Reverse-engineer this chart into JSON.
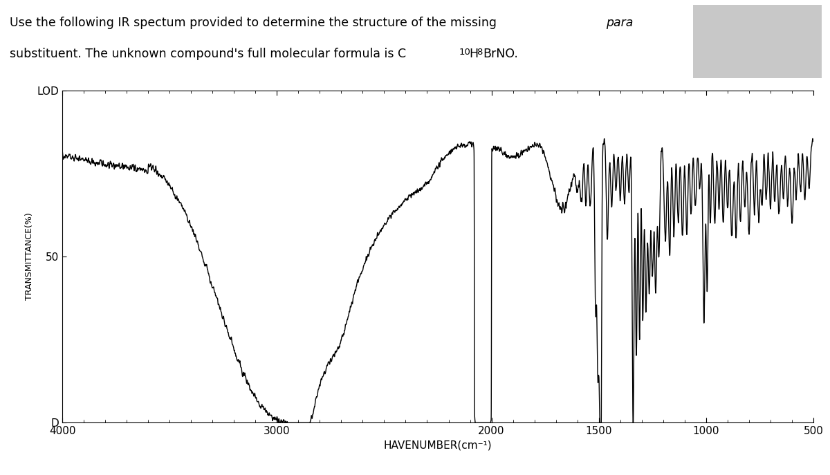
{
  "ylabel": "TRANSMITTANCE(%)",
  "xlabel": "HAVENUMBER(cm⁻¹)",
  "xmin": 4000,
  "xmax": 500,
  "ymin": 0,
  "ymax": 100,
  "ytick_labels": [
    "D",
    "50",
    "LOD"
  ],
  "ytick_vals": [
    0,
    50,
    100
  ],
  "xticks": [
    4000,
    3000,
    2000,
    1500,
    1000,
    500
  ],
  "background_color": "#ffffff",
  "line_color": "#000000",
  "line_width": 1.0,
  "title_line1_normal": "Use the following IR spectum provided to determine the structure of the missing ",
  "title_line1_italic": "para",
  "title_line2": "substituent. The unknown compound's full molecular formula is C",
  "title_formula_sub1": "10",
  "title_formula_H": "H",
  "title_formula_sub2": "8",
  "title_formula_rest": "BrNO.",
  "gray_box_color": "#c8c8c8"
}
